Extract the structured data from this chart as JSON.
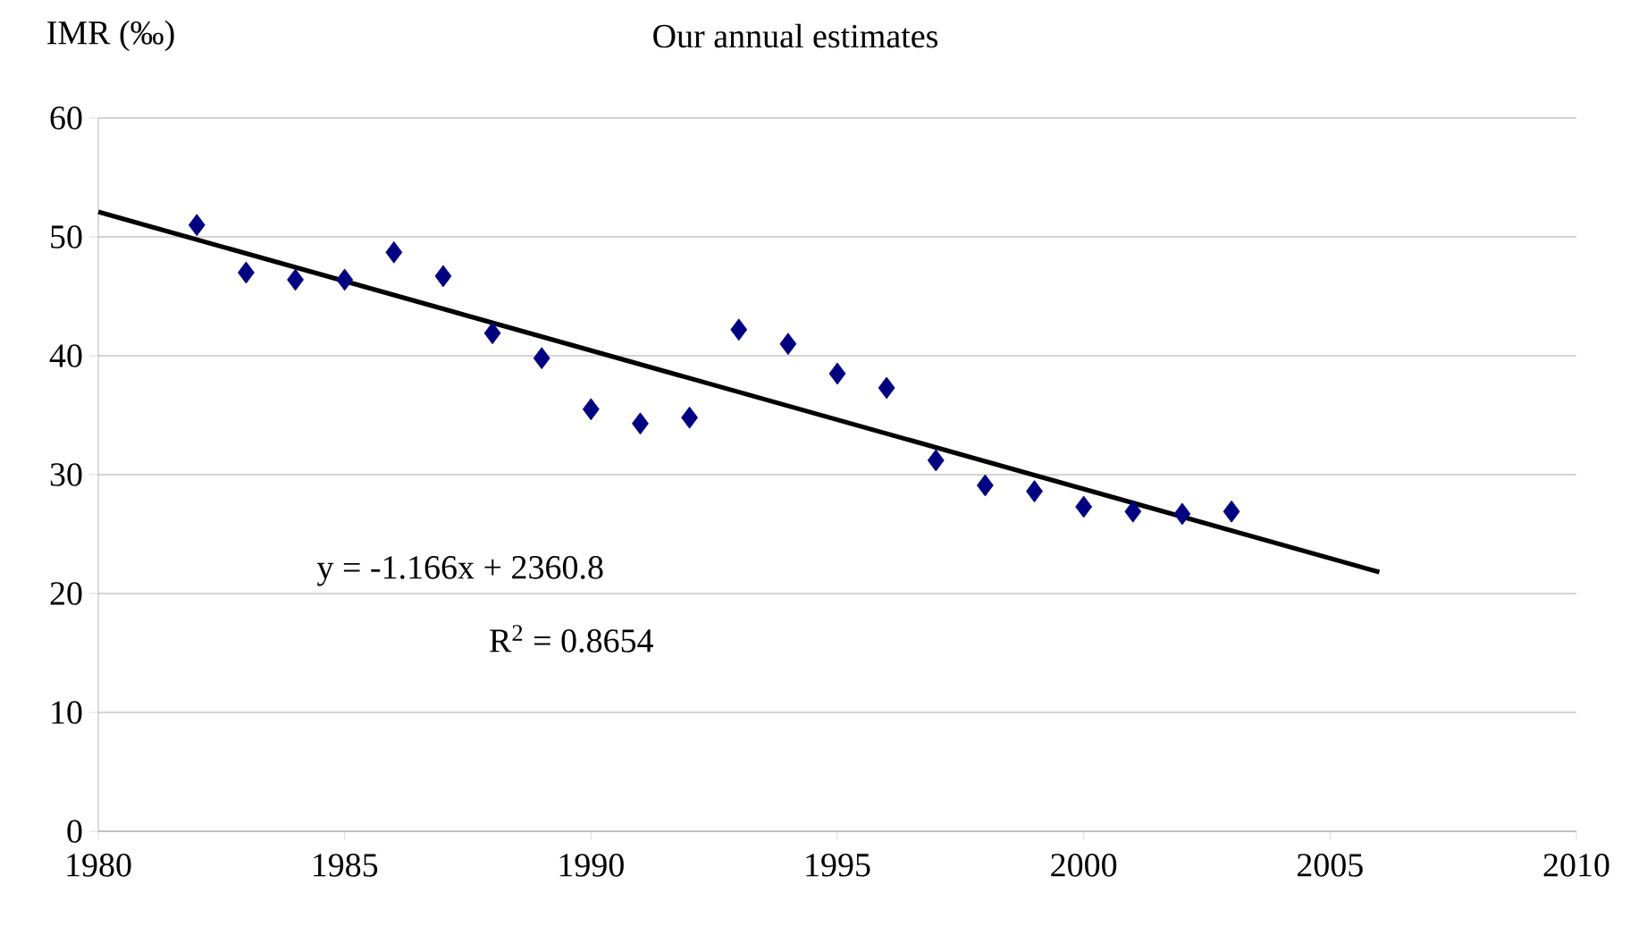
{
  "chart_data": {
    "type": "scatter",
    "title": "Our annual estimates",
    "ylabel": "IMR (‰)",
    "annotations": [
      "y = -1.166x + 2360.8",
      "R$^{2}$ = 0.8654"
    ],
    "series": [
      {
        "color": "#000080",
        "marker": "diamond",
        "x": [
          1982,
          1983,
          1984,
          1985,
          1986,
          1987,
          1988,
          1989,
          1990,
          1991,
          1992,
          1993,
          1994,
          1995,
          1996,
          1997,
          1998,
          1999,
          2000,
          2001,
          2002,
          2003
        ],
        "values": [
          51.0,
          47.0,
          46.4,
          46.4,
          48.7,
          46.7,
          41.9,
          39.8,
          35.5,
          34.3,
          34.8,
          42.2,
          41.0,
          38.5,
          37.3,
          31.2,
          29.1,
          28.6,
          27.3,
          26.9,
          26.7,
          26.9
        ]
      },
      {
        "type": "line",
        "marker": "none",
        "color": "#000000",
        "x": [
          1980,
          2006
        ],
        "values": [
          52.1,
          21.8
        ]
      }
    ],
    "xlim": [
      1980,
      2010
    ],
    "ylim": [
      0,
      60
    ],
    "xticks": [
      1980,
      1985,
      1990,
      1995,
      2000,
      2005,
      2010
    ],
    "yticks": [
      0,
      10,
      20,
      30,
      40,
      50,
      60
    ],
    "grid": "y"
  }
}
